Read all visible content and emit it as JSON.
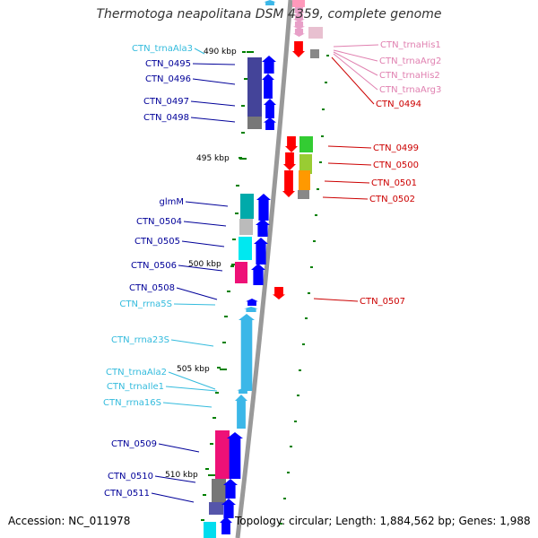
{
  "title": "Thermotoga neapolitana DSM 4359, complete genome",
  "footer": {
    "accession": "Accession: NC_011978",
    "summary": "Topology: circular; Length: 1,884,562 bp; Genes: 1,988"
  },
  "colors": {
    "cds_reverse": "#ff0000",
    "cds_forward": "#0000ff",
    "trna": "#e8a0c8",
    "rrna": "#3bb7e8",
    "axis": "#999999",
    "ticks": "#008000",
    "label_forward": "#000099",
    "label_reverse": "#cc0000",
    "label_rna": "#33bbdd",
    "label_trna_right": "#e080b0"
  },
  "ticks": [
    {
      "label": "490 kbp"
    },
    {
      "label": "495 kbp"
    },
    {
      "label": "500 kbp"
    },
    {
      "label": "505 kbp"
    },
    {
      "label": "510 kbp"
    }
  ],
  "features": {
    "left": [
      {
        "name": "CTN_trnaAla3",
        "kind": "trna"
      },
      {
        "name": "CTN_0495",
        "kind": "cds"
      },
      {
        "name": "CTN_0496",
        "kind": "cds"
      },
      {
        "name": "CTN_0497",
        "kind": "cds"
      },
      {
        "name": "CTN_0498",
        "kind": "cds"
      },
      {
        "name": "glmM",
        "kind": "cds"
      },
      {
        "name": "CTN_0504",
        "kind": "cds"
      },
      {
        "name": "CTN_0505",
        "kind": "cds"
      },
      {
        "name": "CTN_0506",
        "kind": "cds"
      },
      {
        "name": "CTN_0508",
        "kind": "cds"
      },
      {
        "name": "CTN_rrna5S",
        "kind": "rrna"
      },
      {
        "name": "CTN_rrna23S",
        "kind": "rrna"
      },
      {
        "name": "CTN_trnaAla2",
        "kind": "rrna"
      },
      {
        "name": "CTN_trnaIle1",
        "kind": "rrna"
      },
      {
        "name": "CTN_rrna16S",
        "kind": "rrna"
      },
      {
        "name": "CTN_0509",
        "kind": "cds"
      },
      {
        "name": "CTN_0510",
        "kind": "cds"
      },
      {
        "name": "CTN_0511",
        "kind": "cds"
      }
    ],
    "right": [
      {
        "name": "CTN_trnaHis1",
        "kind": "trna"
      },
      {
        "name": "CTN_trnaArg2",
        "kind": "trna"
      },
      {
        "name": "CTN_trnaHis2",
        "kind": "trna"
      },
      {
        "name": "CTN_trnaArg3",
        "kind": "trna"
      },
      {
        "name": "CTN_0494",
        "kind": "cds"
      },
      {
        "name": "CTN_0499",
        "kind": "cds"
      },
      {
        "name": "CTN_0500",
        "kind": "cds"
      },
      {
        "name": "CTN_0501",
        "kind": "cds"
      },
      {
        "name": "CTN_0502",
        "kind": "cds"
      },
      {
        "name": "CTN_0507",
        "kind": "cds"
      }
    ]
  }
}
